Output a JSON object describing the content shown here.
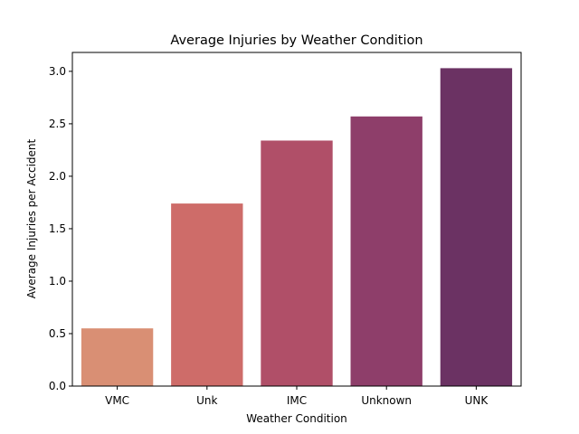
{
  "chart_data": {
    "type": "bar",
    "title": "Average Injuries by Weather Condition",
    "xlabel": "Weather Condition",
    "ylabel": "Average Injuries per Accident",
    "categories": [
      "VMC",
      "Unk",
      "IMC",
      "Unknown",
      "UNK"
    ],
    "values": [
      0.55,
      1.74,
      2.34,
      2.57,
      3.03
    ],
    "colors": [
      "#d98f74",
      "#ce6c69",
      "#b04f68",
      "#8e3e6a",
      "#6b3263"
    ],
    "ylim": [
      0,
      3.18
    ],
    "yticks": [
      "0.0",
      "0.5",
      "1.0",
      "1.5",
      "2.0",
      "2.5",
      "3.0"
    ],
    "grid": false,
    "legend": "none"
  }
}
